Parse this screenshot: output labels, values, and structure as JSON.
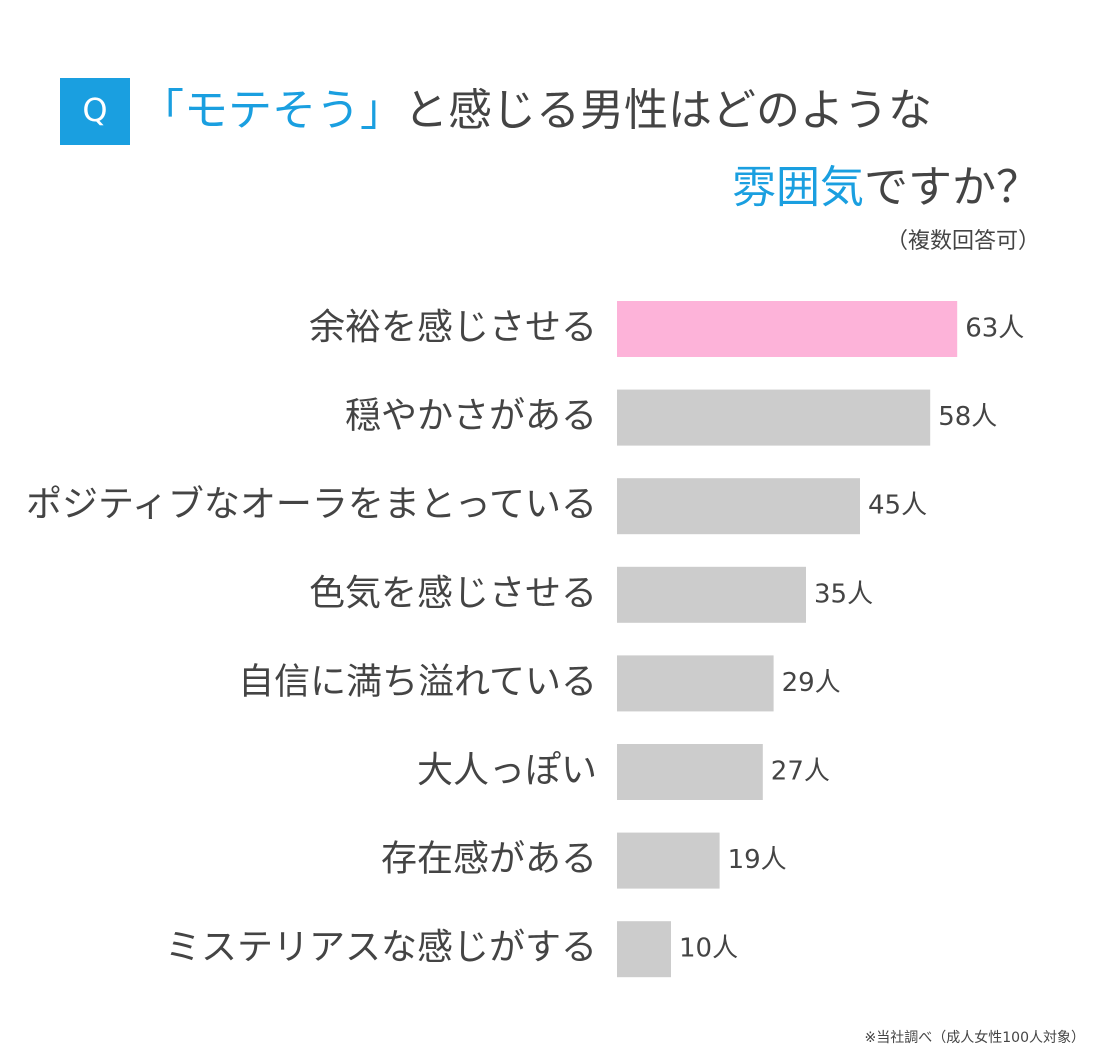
{
  "chart_data": {
    "type": "barh",
    "badge": "Q",
    "title_parts": [
      "「モテそう」",
      "と感じる男性はどのような",
      "雰囲気",
      "ですか？"
    ],
    "subtitle": "（複数回答可）",
    "footnote": "※当社調べ（成人女性100人対象）",
    "categories": [
      "余裕を感じさせる",
      "穏やかさがある",
      "ポジティブなオーラをまとっている",
      "色気を感じさせる",
      "自信に満ち溢れている",
      "大人っぽい",
      "存在感がある",
      "ミステリアスな感じがする"
    ],
    "values": [
      63,
      58,
      45,
      35,
      29,
      27,
      19,
      10
    ],
    "value_labels": [
      "63人",
      "58人",
      "45人",
      "35人",
      "29人",
      "27人",
      "19人",
      "10人"
    ],
    "colors": [
      "#fdb3d9",
      "#cccccc",
      "#cccccc",
      "#cccccc",
      "#cccccc",
      "#cccccc",
      "#cccccc",
      "#cccccc"
    ]
  }
}
